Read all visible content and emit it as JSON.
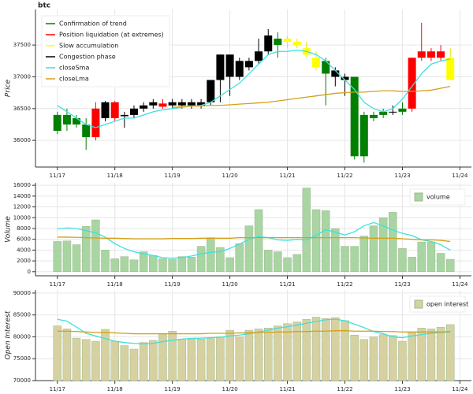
{
  "chart_data": [
    {
      "type": "candlestick",
      "title": "btc",
      "ylabel": "Price",
      "x": [
        17,
        17.167,
        17.333,
        17.5,
        17.667,
        17.833,
        18,
        18.167,
        18.333,
        18.5,
        18.667,
        18.833,
        19,
        19.167,
        19.333,
        19.5,
        19.667,
        19.833,
        20,
        20.167,
        20.333,
        20.5,
        20.667,
        20.833,
        21,
        21.167,
        21.333,
        21.5,
        21.667,
        21.833,
        22,
        22.167,
        22.333,
        22.5,
        22.667,
        22.833,
        23,
        23.167,
        23.333,
        23.5,
        23.667,
        23.833
      ],
      "open": [
        36400,
        36400,
        36250,
        36250,
        36500,
        36350,
        36600,
        36400,
        36400,
        36550,
        36550,
        36580,
        36550,
        36600,
        36600,
        36600,
        36600,
        36950,
        37350,
        37000,
        37150,
        37250,
        37400,
        37600,
        37550,
        37550,
        37450,
        37300,
        37050,
        37100,
        36950,
        37000,
        36400,
        36400,
        36400,
        36450,
        36450,
        36500,
        37400,
        37300,
        37300,
        37300
      ],
      "high": [
        36450,
        36500,
        36400,
        36350,
        36600,
        36620,
        36620,
        36450,
        36550,
        36600,
        36650,
        36650,
        36650,
        36650,
        36650,
        36650,
        36950,
        37350,
        37350,
        37300,
        37300,
        37600,
        37750,
        37700,
        37650,
        37600,
        37550,
        37400,
        37300,
        37150,
        37050,
        37000,
        36450,
        36450,
        36500,
        36550,
        36600,
        37300,
        37850,
        37450,
        37500,
        37450
      ],
      "low": [
        36100,
        36150,
        36200,
        35850,
        36000,
        36300,
        36300,
        36200,
        36350,
        36450,
        36500,
        36500,
        36500,
        36500,
        36500,
        36500,
        36550,
        36600,
        36700,
        36950,
        37100,
        37200,
        37350,
        37300,
        37450,
        37450,
        37300,
        37100,
        36550,
        36850,
        36700,
        35700,
        35650,
        36300,
        36350,
        36400,
        36400,
        36450,
        37250,
        37250,
        37250,
        36950
      ],
      "close": [
        36150,
        36250,
        36350,
        36050,
        36050,
        36600,
        36350,
        36380,
        36500,
        36500,
        36600,
        36530,
        36600,
        36550,
        36550,
        36550,
        36950,
        37350,
        37000,
        37250,
        37250,
        37400,
        37650,
        37500,
        37600,
        37500,
        37350,
        37150,
        37250,
        37000,
        37000,
        35750,
        35750,
        36350,
        36450,
        36450,
        36500,
        37300,
        37300,
        37400,
        37400,
        36950
      ],
      "colors": [
        "#007f00",
        "#007f00",
        "#007f00",
        "#007f00",
        "#ff0000",
        "#000000",
        "#ff0000",
        "#000000",
        "#000000",
        "#000000",
        "#000000",
        "#ff0000",
        "#000000",
        "#000000",
        "#000000",
        "#000000",
        "#000000",
        "#000000",
        "#000000",
        "#000000",
        "#000000",
        "#000000",
        "#000000",
        "#007f00",
        "#ffff00",
        "#ffff00",
        "#ffff00",
        "#ffff00",
        "#007f00",
        "#000000",
        "#000000",
        "#007f00",
        "#007f00",
        "#007f00",
        "#007f00",
        "#000000",
        "#007f00",
        "#ff0000",
        "#ff0000",
        "#ff0000",
        "#ff0000",
        "#ffff00"
      ],
      "legend": [
        {
          "name": "Confirmation of trend",
          "color": "#007f00"
        },
        {
          "name": "Position liquidation (at extremes)",
          "color": "#ff0000"
        },
        {
          "name": "Slow accumulation",
          "color": "#ffff00"
        },
        {
          "name": "Congestion phase",
          "color": "#000000"
        }
      ],
      "series": [
        {
          "name": "closeSma",
          "color": "#3de0e0",
          "values": [
            36550,
            36450,
            36350,
            36250,
            36200,
            36250,
            36300,
            36350,
            36350,
            36400,
            36450,
            36480,
            36500,
            36520,
            36540,
            36550,
            36600,
            36700,
            36800,
            36900,
            37050,
            37200,
            37350,
            37400,
            37400,
            37420,
            37400,
            37350,
            37250,
            37100,
            36950,
            36800,
            36600,
            36500,
            36450,
            36500,
            36650,
            36850,
            37050,
            37200,
            37250,
            37280
          ]
        },
        {
          "name": "closeLma",
          "color": "#d4a017",
          "values": [
            null,
            null,
            null,
            null,
            null,
            null,
            null,
            null,
            null,
            null,
            null,
            null,
            36520,
            36530,
            36540,
            36540,
            36550,
            36550,
            36560,
            36570,
            36580,
            36590,
            36600,
            36620,
            36640,
            36660,
            36680,
            36700,
            36720,
            36740,
            36750,
            36760,
            36760,
            36770,
            36780,
            36780,
            36770,
            36770,
            36780,
            36790,
            36820,
            36850
          ]
        }
      ],
      "xlim": [
        16.62,
        24.2
      ],
      "ylim": [
        35580,
        38060
      ],
      "yticks": [
        36000,
        36500,
        37000,
        37500
      ],
      "xticks": [
        {
          "value": 17,
          "label": "11/17"
        },
        {
          "value": 18,
          "label": "11/18"
        },
        {
          "value": 19,
          "label": "11/19"
        },
        {
          "value": 20,
          "label": "11/20"
        },
        {
          "value": 21,
          "label": "11/21"
        },
        {
          "value": 22,
          "label": "11/22"
        },
        {
          "value": 23,
          "label": "11/23"
        },
        {
          "value": 24,
          "label": "11/24"
        }
      ],
      "grid": true,
      "legend_position": "top-left"
    },
    {
      "type": "bar",
      "ylabel": "Volume",
      "x": [
        17,
        17.167,
        17.333,
        17.5,
        17.667,
        17.833,
        18,
        18.167,
        18.333,
        18.5,
        18.667,
        18.833,
        19,
        19.167,
        19.333,
        19.5,
        19.667,
        19.833,
        20,
        20.167,
        20.333,
        20.5,
        20.667,
        20.833,
        21,
        21.167,
        21.333,
        21.5,
        21.667,
        21.833,
        22,
        22.167,
        22.333,
        22.5,
        22.667,
        22.833,
        23,
        23.167,
        23.333,
        23.5,
        23.667,
        23.833
      ],
      "series": [
        {
          "name": "volume",
          "color": "#a8d5a2",
          "values": [
            5600,
            5700,
            5000,
            8400,
            9600,
            4000,
            2400,
            2800,
            2200,
            3700,
            3000,
            2400,
            2300,
            2800,
            2700,
            4700,
            6300,
            4500,
            2600,
            5200,
            8500,
            11500,
            4000,
            3700,
            2600,
            3200,
            15500,
            11500,
            11300,
            8000,
            4700,
            4700,
            6600,
            8500,
            10000,
            11000,
            4300,
            2700,
            5500,
            5500,
            3400,
            2300
          ]
        },
        {
          "type": "line",
          "color": "#3de0e0",
          "values": [
            7900,
            8100,
            8000,
            7600,
            7200,
            6400,
            5200,
            4300,
            3700,
            3300,
            3000,
            2600,
            2500,
            2600,
            2900,
            3300,
            3600,
            3700,
            4300,
            5100,
            6000,
            6500,
            6300,
            5900,
            5800,
            6000,
            5900,
            6700,
            7800,
            7300,
            6800,
            7400,
            8500,
            9100,
            8500,
            7700,
            7100,
            6700,
            5900,
            5600,
            5000,
            4000
          ]
        },
        {
          "type": "line",
          "color": "#d4a017",
          "values": [
            6400,
            6400,
            6350,
            6300,
            6250,
            6200,
            6200,
            6150,
            6100,
            6100,
            6100,
            6100,
            6150,
            6150,
            6150,
            6200,
            6200,
            6200,
            6200,
            6300,
            6300,
            6300,
            6300,
            6300,
            6300,
            6300,
            6300,
            6300,
            6300,
            6300,
            6300,
            6300,
            6250,
            6200,
            6200,
            6200,
            6100,
            6000,
            5900,
            5900,
            5800,
            5600
          ]
        }
      ],
      "xlim": [
        16.62,
        24.2
      ],
      "ylim": [
        -760,
        16460
      ],
      "yticks": [
        0,
        2000,
        4000,
        6000,
        8000,
        10000,
        12000,
        14000,
        16000
      ],
      "xticks": [
        {
          "value": 17,
          "label": "11/17"
        },
        {
          "value": 18,
          "label": "11/18"
        },
        {
          "value": 19,
          "label": "11/19"
        },
        {
          "value": 20,
          "label": "11/20"
        },
        {
          "value": 21,
          "label": "11/21"
        },
        {
          "value": 22,
          "label": "11/22"
        },
        {
          "value": 23,
          "label": "11/23"
        },
        {
          "value": 24,
          "label": "11/24"
        }
      ],
      "grid": true,
      "legend_position": "top-right"
    },
    {
      "type": "bar",
      "ylabel": "Open Interest",
      "x": [
        17,
        17.167,
        17.333,
        17.5,
        17.667,
        17.833,
        18,
        18.167,
        18.333,
        18.5,
        18.667,
        18.833,
        19,
        19.167,
        19.333,
        19.5,
        19.667,
        19.833,
        20,
        20.167,
        20.333,
        20.5,
        20.667,
        20.833,
        21,
        21.167,
        21.333,
        21.5,
        21.667,
        21.833,
        22,
        22.167,
        22.333,
        22.5,
        22.667,
        22.833,
        23,
        23.167,
        23.333,
        23.5,
        23.667,
        23.833
      ],
      "series": [
        {
          "name": "open interest",
          "color": "#d6d1a0",
          "values": [
            82500,
            81800,
            79700,
            79400,
            79000,
            81700,
            79000,
            78000,
            77200,
            78700,
            79200,
            80600,
            81300,
            79500,
            79700,
            79500,
            79600,
            80000,
            81500,
            80000,
            81500,
            81800,
            82000,
            82500,
            83000,
            83400,
            84000,
            84500,
            84200,
            84400,
            83700,
            80400,
            79400,
            80000,
            80500,
            80300,
            79000,
            81000,
            82000,
            81800,
            82200,
            82800
          ]
        },
        {
          "type": "line",
          "color": "#3de0e0",
          "values": [
            84000,
            83600,
            82200,
            80800,
            80200,
            79600,
            79000,
            78700,
            78500,
            78400,
            78500,
            78900,
            79200,
            79500,
            79600,
            79700,
            79800,
            79900,
            80200,
            80400,
            80700,
            81100,
            81500,
            82000,
            82300,
            82700,
            83100,
            83500,
            83900,
            84000,
            83700,
            82900,
            82100,
            81200,
            80700,
            80000,
            79800,
            80200,
            80500,
            80800,
            81000,
            81100
          ]
        },
        {
          "type": "line",
          "color": "#d4a017",
          "values": [
            81300,
            81300,
            81200,
            81100,
            81000,
            81000,
            80900,
            80800,
            80700,
            80700,
            80700,
            80700,
            80700,
            80700,
            80700,
            80700,
            80800,
            80800,
            80800,
            80900,
            80900,
            81000,
            81000,
            81100,
            81100,
            81200,
            81200,
            81300,
            81300,
            81400,
            81400,
            81300,
            81300,
            81300,
            81200,
            81200,
            81100,
            81100,
            81100,
            81100,
            81100,
            81200
          ]
        }
      ],
      "xlim": [
        16.62,
        24.2
      ],
      "ylim": [
        70000,
        90700
      ],
      "yticks": [
        70000,
        75000,
        80000,
        85000,
        90000
      ],
      "xticks": [
        {
          "value": 17,
          "label": "11/17"
        },
        {
          "value": 18,
          "label": "11/18"
        },
        {
          "value": 19,
          "label": "11/19"
        },
        {
          "value": 20,
          "label": "11/20"
        },
        {
          "value": 21,
          "label": "11/21"
        },
        {
          "value": 22,
          "label": "11/22"
        },
        {
          "value": 23,
          "label": "11/23"
        },
        {
          "value": 24,
          "label": "11/24"
        }
      ],
      "grid": true,
      "legend_position": "top-right"
    }
  ]
}
